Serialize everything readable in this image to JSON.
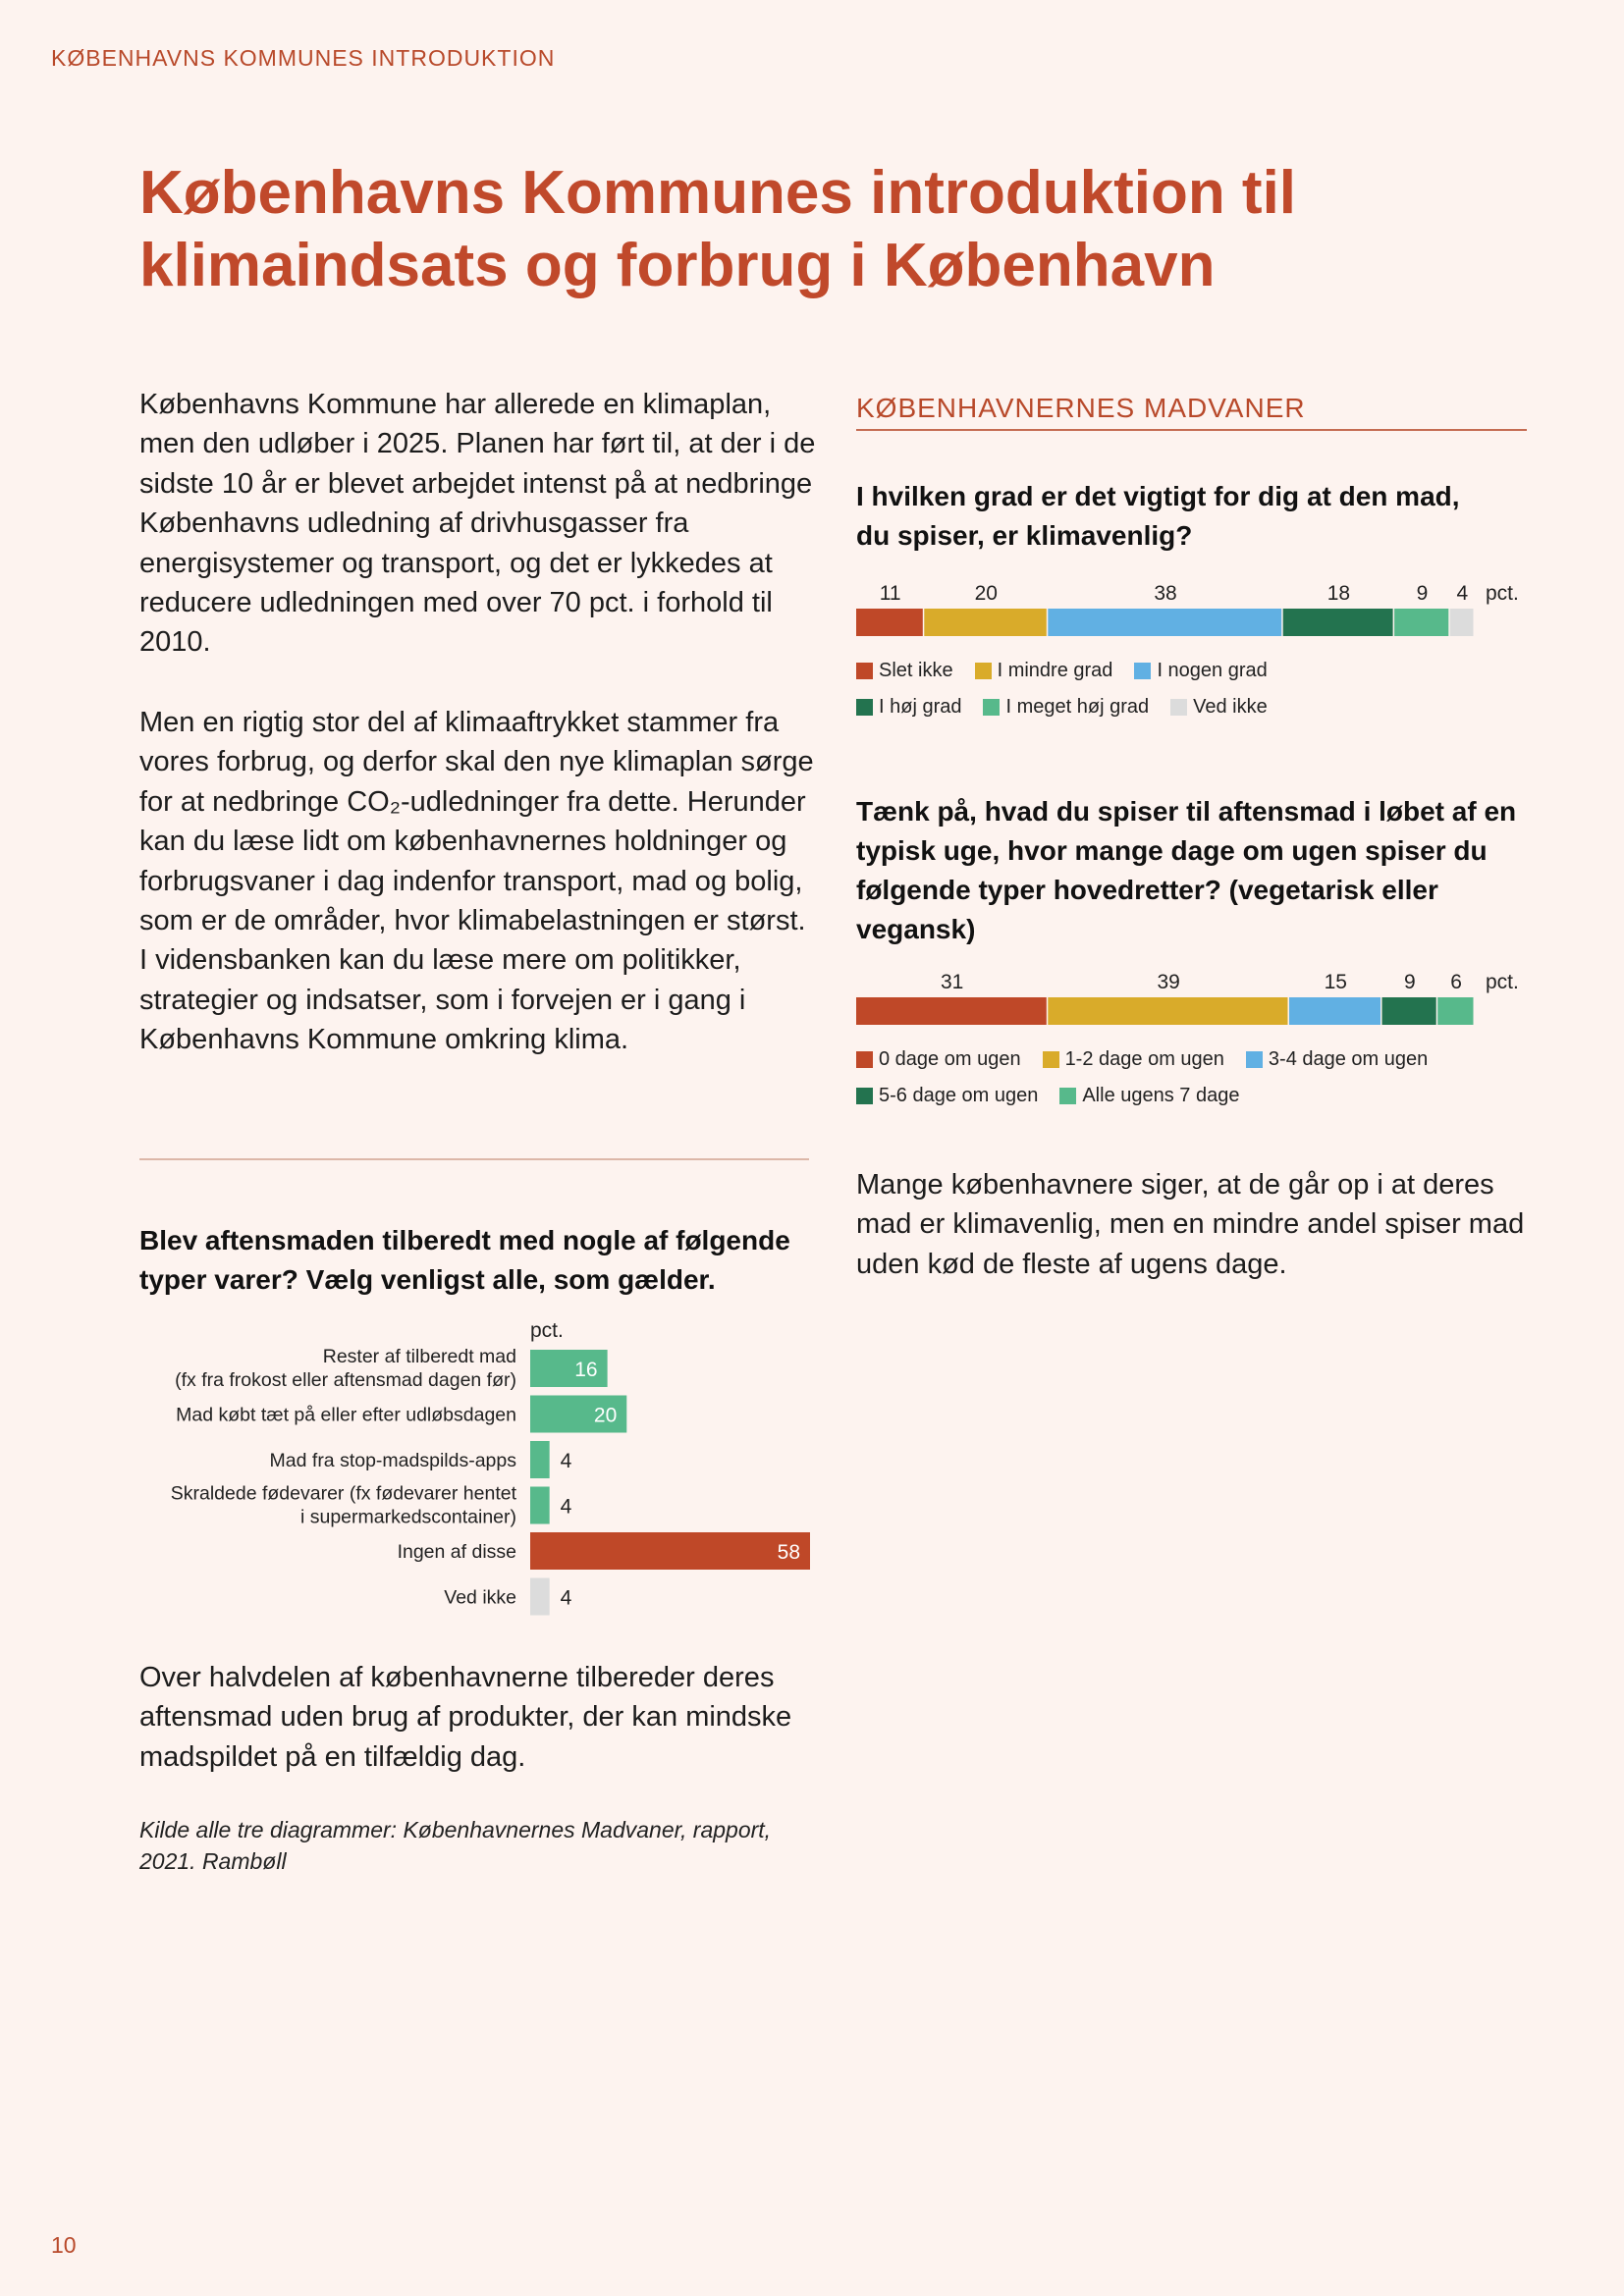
{
  "header": {
    "running_title": "KØBENHAVNS KOMMUNES INTRODUKTION"
  },
  "title": "Københavns Kommunes introduktion til klimaindsats og forbrug i København",
  "intro": {
    "paragraph1": "Københavns Kommune har allerede en klimaplan, men den udløber i 2025. Planen har ført til, at der i de sidste 10 år er blevet arbejdet intenst på at nedbringe Københavns udledning af drivhusgasser fra energisystemer og transport, og det er lykkedes at reducere udledningen med over 70 pct. i forhold til 2010.",
    "paragraph2": "Men en rigtig stor del af klimaaftrykket stammer fra vores forbrug, og derfor skal den nye klimaplan sørge for at nedbringe CO₂-udledninger fra dette. Herunder kan du læse lidt om københavnernes holdninger og forbrugsvaner i dag indenfor transport, mad og bolig, som er de områder, hvor klimabelastningen er størst. I vidensbanken kan du læse mere om politikker, strategier og indsatser, som i forvejen er i gang i Københavns Kommune omkring klima."
  },
  "section_label": "KØBENHAVNERNES MADVANER",
  "chart_data": [
    {
      "type": "bar",
      "orientation": "stacked-horizontal",
      "title": "I hvilken grad er det vigtigt for dig at den mad, du spiser, er klimavenlig?",
      "unit": "pct.",
      "series": [
        {
          "name": "Slet ikke",
          "value": 11,
          "color": "#bf4828"
        },
        {
          "name": "I mindre grad",
          "value": 20,
          "color": "#d9ab2a"
        },
        {
          "name": "I nogen grad",
          "value": 38,
          "color": "#61b0e3"
        },
        {
          "name": "I høj grad",
          "value": 18,
          "color": "#23734f"
        },
        {
          "name": "I meget høj grad",
          "value": 9,
          "color": "#57b98b"
        },
        {
          "name": "Ved ikke",
          "value": 4,
          "color": "#dcdcdc"
        }
      ],
      "legend": "bottom"
    },
    {
      "type": "bar",
      "orientation": "stacked-horizontal",
      "title": "Tænk på, hvad du spiser til aftensmad i løbet af en typisk uge, hvor mange dage om ugen spiser du følgende typer hovedretter? (vegetarisk eller vegansk)",
      "unit": "pct.",
      "series": [
        {
          "name": "0 dage om ugen",
          "value": 31,
          "color": "#bf4828"
        },
        {
          "name": "1-2 dage om ugen",
          "value": 39,
          "color": "#d9ab2a"
        },
        {
          "name": "3-4 dage om ugen",
          "value": 15,
          "color": "#61b0e3"
        },
        {
          "name": "5-6 dage om ugen",
          "value": 9,
          "color": "#23734f"
        },
        {
          "name": "Alle ugens 7 dage",
          "value": 6,
          "color": "#57b98b"
        }
      ],
      "legend": "bottom"
    },
    {
      "type": "bar",
      "orientation": "horizontal",
      "title": "Blev aftensmaden tilberedt med nogle af følgende typer varer? Vælg venligst alle, som gælder.",
      "unit": "pct.",
      "xlim": [
        0,
        58
      ],
      "categories": [
        [
          "Rester af tilberedt mad",
          "(fx fra frokost eller aftensmad dagen før)"
        ],
        [
          "Mad købt tæt på eller efter udløbsdagen"
        ],
        [
          "Mad fra stop-madspilds-apps"
        ],
        [
          "Skraldede fødevarer (fx fødevarer hentet",
          "i supermarkedscontainer)"
        ],
        [
          "Ingen af disse"
        ],
        [
          "Ved ikke"
        ]
      ],
      "values": [
        16,
        20,
        4,
        4,
        58,
        4
      ],
      "colors": [
        "#57b98b",
        "#57b98b",
        "#57b98b",
        "#57b98b",
        "#bf4828",
        "#dcdcdc"
      ]
    }
  ],
  "lower_left_text": "Over halvdelen af københavnerne tilbereder deres aftensmad uden brug af produkter, der kan mindske madspildet på en tilfældig dag.",
  "right_summary": "Mange københavnere siger, at de går op i at deres mad er klimavenlig, men en mindre andel spiser mad uden kød de fleste af ugens dage.",
  "source": "Kilde alle tre diagrammer: Københavnernes Madvaner, rapport, 2021. Rambøll",
  "page_number": "10"
}
